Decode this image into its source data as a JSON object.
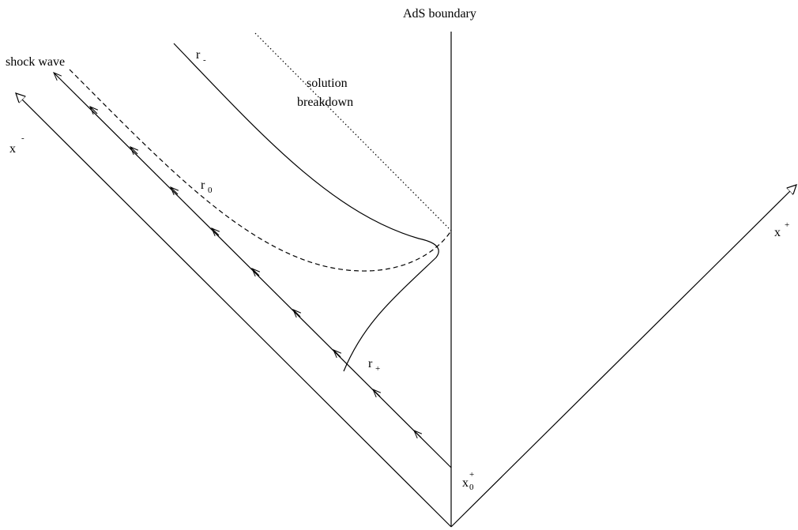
{
  "labels": {
    "boundary": "AdS boundary",
    "shock_wave": "shock wave",
    "solution_line1": "solution",
    "solution_line2": "breakdown",
    "x_minus": "x",
    "x_minus_sup": "-",
    "x_plus": "x",
    "x_plus_sup": "+",
    "r_minus": "r",
    "r_minus_sub": "-",
    "r_zero": "r",
    "r_zero_sub": "0",
    "r_plus": "r",
    "r_plus_sub": "+",
    "x0_plus": "x",
    "x0_plus_sub": "0",
    "x0_plus_sup": "+"
  },
  "line_styles": {
    "shock_front": "dashed",
    "solution_breakdown": "dotted",
    "boundary": "solid"
  }
}
